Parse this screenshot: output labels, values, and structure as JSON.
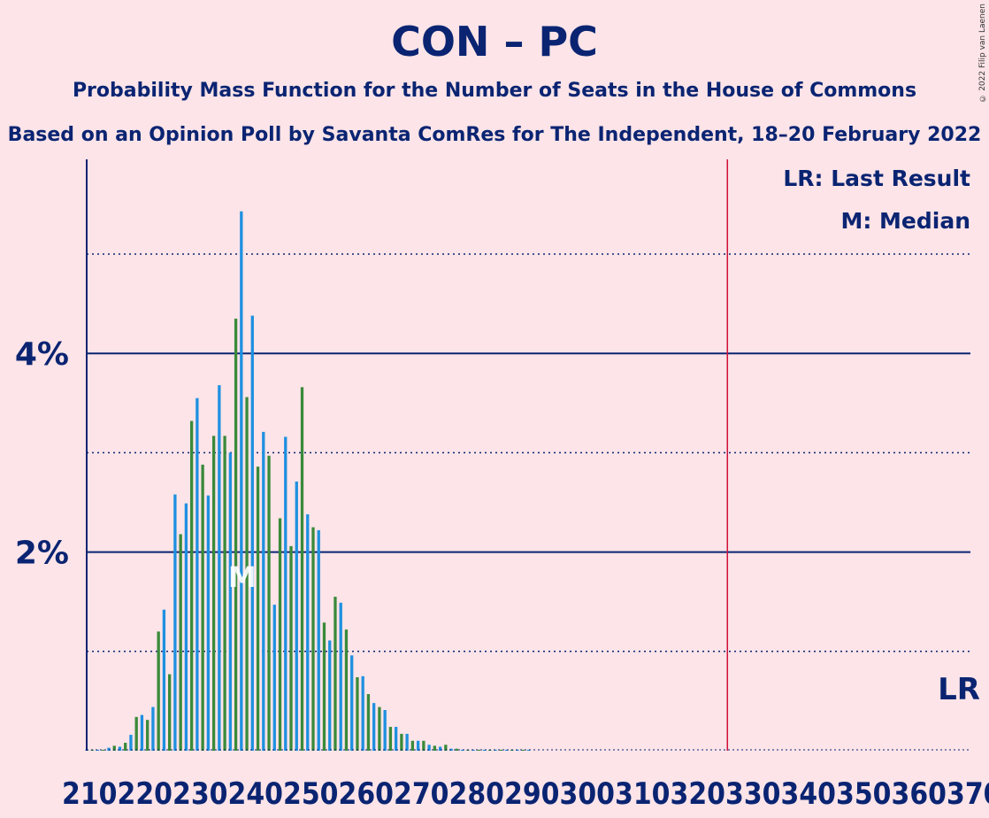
{
  "titles": {
    "main": "CON – PC",
    "subtitle": "Probability Mass Function for the Number of Seats in the House of Commons",
    "source": "Based on an Opinion Poll by Savanta ComRes for The Independent, 18–20 February 2022"
  },
  "copyright": "© 2022 Filip van Laenen",
  "legend": {
    "lr": "LR: Last Result",
    "m": "M: Median",
    "position": "top-right"
  },
  "colors": {
    "background": "#fce4e8",
    "text": "#0a2472",
    "bar_blue": "#1e90e0",
    "bar_green": "#3a8a3a",
    "last_result_line": "#d0103a",
    "grid": "#0a2472"
  },
  "chart_data": {
    "type": "bar",
    "xlim": [
      210,
      370
    ],
    "ylim": [
      0,
      6.5
    ],
    "y_unit": "%",
    "yticks_major": [
      {
        "value": 2,
        "label": "2%"
      },
      {
        "value": 4,
        "label": "4%"
      }
    ],
    "yticks_minor": [
      1,
      3,
      5
    ],
    "xtick_labels": [
      "210",
      "220",
      "230",
      "240",
      "250",
      "260",
      "270",
      "280",
      "290",
      "300",
      "310",
      "320",
      "330",
      "340",
      "350",
      "360",
      "370"
    ],
    "x": [
      210,
      211,
      212,
      213,
      214,
      215,
      216,
      217,
      218,
      219,
      220,
      221,
      222,
      223,
      224,
      225,
      226,
      227,
      228,
      229,
      230,
      231,
      232,
      233,
      234,
      235,
      236,
      237,
      238,
      239,
      240,
      241,
      242,
      243,
      244,
      245,
      246,
      247,
      248,
      249,
      250,
      251,
      252,
      253,
      254,
      255,
      256,
      257,
      258,
      259,
      260,
      261,
      262,
      263,
      264,
      265,
      266,
      267,
      268,
      269,
      270,
      271,
      272,
      273,
      274,
      275,
      276,
      277,
      278,
      279,
      280,
      281,
      282,
      283,
      284,
      285,
      286,
      287,
      288,
      289,
      290
    ],
    "values": [
      0.01,
      0.01,
      0.01,
      0.01,
      0.03,
      0.05,
      0.04,
      0.08,
      0.16,
      0.34,
      0.36,
      0.31,
      0.44,
      1.2,
      1.42,
      0.77,
      2.58,
      2.18,
      2.49,
      3.32,
      3.55,
      2.88,
      2.57,
      3.17,
      3.68,
      3.17,
      3.0,
      4.35,
      5.43,
      3.56,
      4.38,
      2.86,
      3.21,
      2.97,
      1.47,
      2.34,
      3.16,
      2.06,
      2.71,
      3.66,
      2.38,
      2.25,
      2.22,
      1.29,
      1.11,
      1.55,
      1.49,
      1.22,
      0.96,
      0.74,
      0.75,
      0.57,
      0.48,
      0.44,
      0.41,
      0.24,
      0.24,
      0.17,
      0.17,
      0.1,
      0.1,
      0.1,
      0.06,
      0.05,
      0.04,
      0.06,
      0.02,
      0.02,
      0.01,
      0.01,
      0.01,
      0.01,
      0.01,
      0.01,
      0.01,
      0.01,
      0.01,
      0.01,
      0.01,
      0.01,
      0.01
    ],
    "median": 238,
    "median_label": "M",
    "last_result": 326,
    "last_result_label": "LR"
  }
}
